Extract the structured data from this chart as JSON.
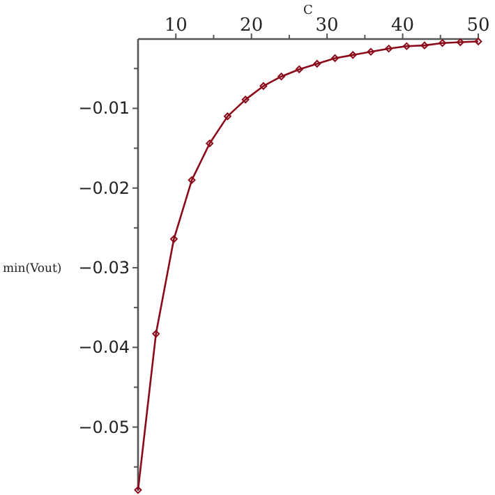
{
  "chart_data": {
    "type": "line",
    "xlabel": "C",
    "ylabel": "min(Vout)",
    "x": [
      5,
      7.37,
      9.74,
      12.11,
      14.47,
      16.84,
      19.21,
      21.58,
      23.95,
      26.32,
      28.68,
      31.05,
      33.42,
      35.79,
      38.16,
      40.53,
      42.89,
      45.26,
      47.63,
      50
    ],
    "series": [
      {
        "color": "#8b0a1a",
        "values": [
          -0.0579,
          -0.0383,
          -0.0264,
          -0.019,
          -0.0144,
          -0.011,
          -0.0089,
          -0.0072,
          -0.006,
          -0.0051,
          -0.0044,
          -0.0037,
          -0.0033,
          -0.0029,
          -0.0025,
          -0.0022,
          -0.0021,
          -0.0018,
          -0.0017,
          -0.0016
        ]
      }
    ],
    "xlim": [
      5,
      50
    ],
    "ylim": [
      -0.058,
      -0.0013
    ],
    "xticks": [
      10,
      {
        "value": 15,
        "label": null
      },
      20,
      {
        "value": 25,
        "label": null
      },
      30,
      {
        "value": 35,
        "label": null
      },
      40,
      {
        "value": 45,
        "label": null
      },
      50
    ],
    "yticks": [
      {
        "value": -0.005,
        "label": null
      },
      {
        "value": -0.01,
        "label": "−0.01"
      },
      {
        "value": -0.015,
        "label": null
      },
      {
        "value": -0.02,
        "label": "−0.02"
      },
      {
        "value": -0.025,
        "label": null
      },
      {
        "value": -0.03,
        "label": "−0.03"
      },
      {
        "value": -0.035,
        "label": null
      },
      {
        "value": -0.04,
        "label": "−0.04"
      },
      {
        "value": -0.045,
        "label": null
      },
      {
        "value": -0.05,
        "label": "−0.05"
      },
      {
        "value": -0.055,
        "label": null
      }
    ],
    "grid": false,
    "marker": "diamond",
    "line_style": "solid"
  }
}
